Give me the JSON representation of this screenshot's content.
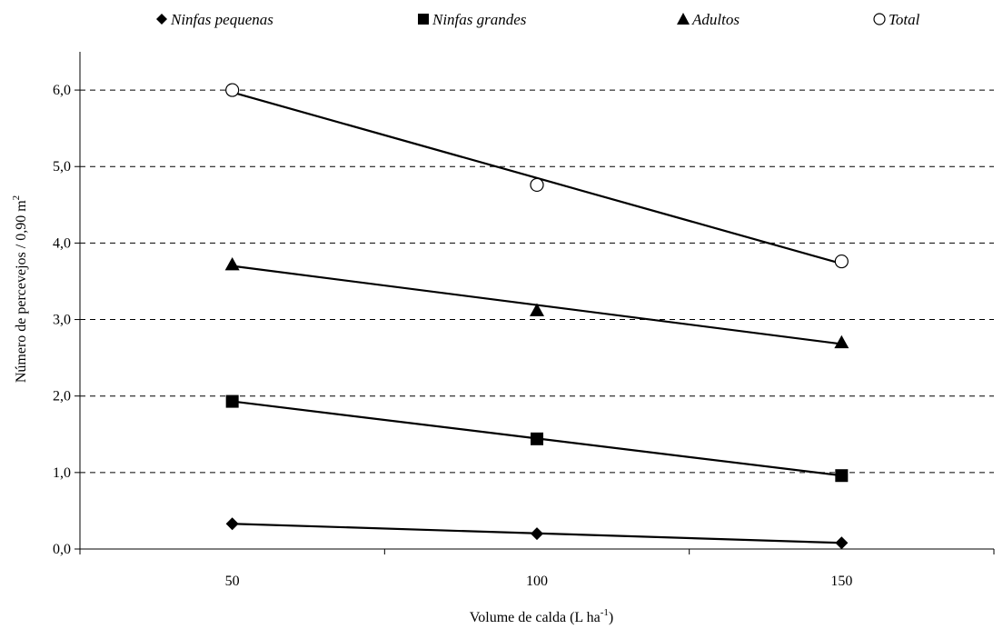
{
  "chart_data": {
    "type": "scatter",
    "x": [
      50,
      100,
      150
    ],
    "xlabel": "Volume de calda (L ha",
    "xlabel_sup": "-1",
    "xlabel_close": ")",
    "ylabel": "Número de percevejos / 0,90 m",
    "ylabel_sup": "2",
    "xlim": [
      25,
      175
    ],
    "ylim": [
      0,
      6.5
    ],
    "x_ticks": [
      "50",
      "100",
      "150"
    ],
    "y_ticks": [
      "0,0",
      "1,0",
      "2,0",
      "3,0",
      "4,0",
      "5,0",
      "6,0"
    ],
    "grid": "horizontal-dashed",
    "legend_position": "top",
    "series": [
      {
        "name": "Ninfas pequenas",
        "marker": "diamond",
        "values": [
          0.33,
          0.2,
          0.08
        ],
        "trend": [
          0.33,
          0.205,
          0.08
        ]
      },
      {
        "name": "Ninfas grandes",
        "marker": "square",
        "values": [
          1.93,
          1.44,
          0.96
        ],
        "trend": [
          1.93,
          1.445,
          0.96
        ]
      },
      {
        "name": "Adultos",
        "marker": "triangle",
        "values": [
          3.72,
          3.12,
          2.7
        ],
        "trend": [
          3.7,
          3.19,
          2.68
        ]
      },
      {
        "name": "Total",
        "marker": "circle-open",
        "values": [
          6.0,
          4.76,
          3.76
        ],
        "trend": [
          5.97,
          4.85,
          3.73
        ]
      }
    ]
  }
}
